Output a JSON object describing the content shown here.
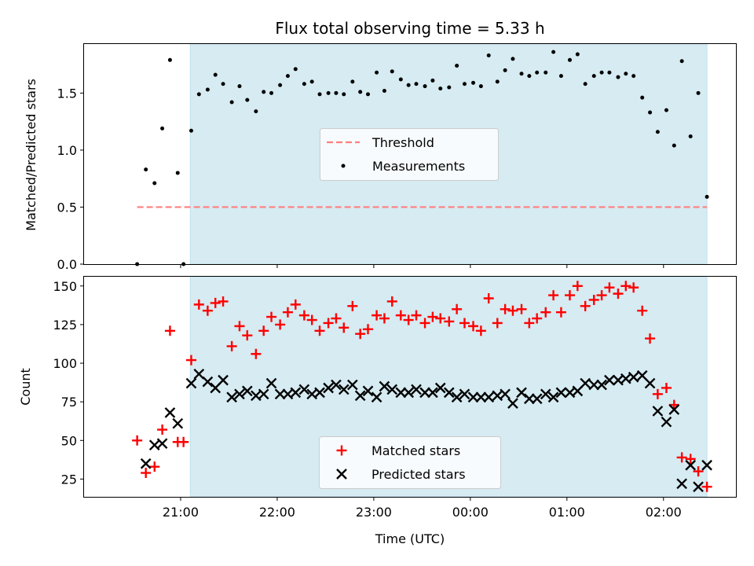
{
  "title": "Flux total observing time = 5.33 h",
  "colors": {
    "shade": "#add8e6",
    "threshold": "#ff7f7f",
    "measurement": "#000000",
    "matched": "#ff0000",
    "predicted": "#000000"
  },
  "chart_data": [
    {
      "type": "scatter",
      "ylabel": "Matched/Predicted stars",
      "xlabel": "",
      "xlim": [
        20.0,
        26.75
      ],
      "ylim": [
        0,
        1.93
      ],
      "yticks": [
        0.0,
        0.5,
        1.0,
        1.5
      ],
      "ytick_labels": [
        "0.0",
        "0.5",
        "1.0",
        "1.5"
      ],
      "shaded_span": [
        21.1,
        26.45
      ],
      "legend_position": "center",
      "threshold": {
        "name": "Threshold",
        "value": 0.5,
        "x_range": [
          20.55,
          26.45
        ]
      },
      "series": [
        {
          "name": "Measurements",
          "x": [
            20.55,
            20.64,
            20.73,
            20.81,
            20.89,
            20.97,
            21.03,
            21.11,
            21.19,
            21.28,
            21.36,
            21.44,
            21.53,
            21.61,
            21.69,
            21.78,
            21.86,
            21.94,
            22.03,
            22.11,
            22.19,
            22.28,
            22.36,
            22.44,
            22.53,
            22.61,
            22.69,
            22.78,
            22.86,
            22.94,
            23.03,
            23.11,
            23.19,
            23.28,
            23.36,
            23.44,
            23.53,
            23.61,
            23.69,
            23.78,
            23.86,
            23.94,
            24.03,
            24.11,
            24.19,
            24.28,
            24.36,
            24.44,
            24.53,
            24.61,
            24.69,
            24.78,
            24.86,
            24.94,
            25.03,
            25.11,
            25.19,
            25.28,
            25.36,
            25.44,
            25.53,
            25.61,
            25.69,
            25.78,
            25.86,
            25.94,
            26.03,
            26.11,
            26.19,
            26.28,
            26.36,
            26.45
          ],
          "y": [
            0.0,
            0.83,
            0.71,
            1.19,
            1.79,
            0.8,
            0.0,
            1.17,
            1.49,
            1.53,
            1.66,
            1.58,
            1.42,
            1.56,
            1.44,
            1.34,
            1.51,
            1.5,
            1.57,
            1.65,
            1.71,
            1.58,
            1.6,
            1.49,
            1.5,
            1.5,
            1.49,
            1.6,
            1.51,
            1.49,
            1.68,
            1.52,
            1.69,
            1.62,
            1.57,
            1.58,
            1.56,
            1.61,
            1.54,
            1.55,
            1.74,
            1.58,
            1.59,
            1.56,
            1.83,
            1.6,
            1.7,
            1.8,
            1.67,
            1.65,
            1.68,
            1.68,
            1.86,
            1.65,
            1.79,
            1.84,
            1.58,
            1.65,
            1.68,
            1.68,
            1.64,
            1.67,
            1.65,
            1.46,
            1.33,
            1.16,
            1.35,
            1.04,
            1.78,
            1.12,
            1.5,
            0.59
          ]
        }
      ]
    },
    {
      "type": "scatter",
      "ylabel": "Count",
      "xlabel": "Time (UTC)",
      "xlim": [
        20.0,
        26.75
      ],
      "ylim": [
        13.5,
        156
      ],
      "yticks": [
        25,
        50,
        75,
        100,
        125,
        150
      ],
      "ytick_labels": [
        "25",
        "50",
        "75",
        "100",
        "125",
        "150"
      ],
      "xticks": [
        21,
        22,
        23,
        24,
        25,
        26
      ],
      "xtick_labels": [
        "21:00",
        "22:00",
        "23:00",
        "00:00",
        "01:00",
        "02:00"
      ],
      "shaded_span": [
        21.1,
        26.45
      ],
      "legend_position": "lower center",
      "series": [
        {
          "name": "Matched stars",
          "marker": "plus",
          "x": [
            20.55,
            20.64,
            20.73,
            20.81,
            20.89,
            20.97,
            21.03,
            21.11,
            21.19,
            21.28,
            21.36,
            21.44,
            21.53,
            21.61,
            21.69,
            21.78,
            21.86,
            21.94,
            22.03,
            22.11,
            22.19,
            22.28,
            22.36,
            22.44,
            22.53,
            22.61,
            22.69,
            22.78,
            22.86,
            22.94,
            23.03,
            23.11,
            23.19,
            23.28,
            23.36,
            23.44,
            23.53,
            23.61,
            23.69,
            23.78,
            23.86,
            23.94,
            24.03,
            24.11,
            24.19,
            24.28,
            24.36,
            24.44,
            24.53,
            24.61,
            24.69,
            24.78,
            24.86,
            24.94,
            25.03,
            25.11,
            25.19,
            25.28,
            25.36,
            25.44,
            25.53,
            25.61,
            25.69,
            25.78,
            25.86,
            25.94,
            26.03,
            26.11,
            26.19,
            26.28,
            26.36,
            26.45
          ],
          "y": [
            50,
            29,
            33,
            57,
            121,
            49,
            49,
            102,
            138,
            134,
            139,
            140,
            111,
            124,
            118,
            106,
            121,
            130,
            125,
            133,
            138,
            131,
            128,
            121,
            126,
            129,
            123,
            137,
            119,
            122,
            131,
            129,
            140,
            131,
            128,
            131,
            126,
            130,
            129,
            127,
            135,
            126,
            124,
            121,
            142,
            126,
            135,
            134,
            135,
            126,
            129,
            133,
            144,
            133,
            144,
            150,
            137,
            141,
            144,
            149,
            145,
            150,
            149,
            134,
            116,
            80,
            84,
            73,
            39,
            38,
            30,
            20
          ]
        },
        {
          "name": "Predicted stars",
          "marker": "x",
          "x": [
            20.55,
            20.64,
            20.73,
            20.81,
            20.89,
            20.97,
            21.03,
            21.11,
            21.19,
            21.28,
            21.36,
            21.44,
            21.53,
            21.61,
            21.69,
            21.78,
            21.86,
            21.94,
            22.03,
            22.11,
            22.19,
            22.28,
            22.36,
            22.44,
            22.53,
            22.61,
            22.69,
            22.78,
            22.86,
            22.94,
            23.03,
            23.11,
            23.19,
            23.28,
            23.36,
            23.44,
            23.53,
            23.61,
            23.69,
            23.78,
            23.86,
            23.94,
            24.03,
            24.11,
            24.19,
            24.28,
            24.36,
            24.44,
            24.53,
            24.61,
            24.69,
            24.78,
            24.86,
            24.94,
            25.03,
            25.11,
            25.19,
            25.28,
            25.36,
            25.44,
            25.53,
            25.61,
            25.69,
            25.78,
            25.86,
            25.94,
            26.03,
            26.11,
            26.19,
            26.28,
            26.36,
            26.45
          ],
          "y": [
            null,
            35,
            47,
            48,
            68,
            61,
            null,
            87,
            93,
            88,
            84,
            89,
            78,
            80,
            82,
            79,
            80,
            87,
            80,
            80,
            81,
            83,
            80,
            81,
            84,
            86,
            83,
            86,
            79,
            82,
            78,
            85,
            83,
            81,
            81,
            83,
            81,
            81,
            84,
            81,
            78,
            80,
            78,
            78,
            78,
            79,
            80,
            74,
            81,
            77,
            77,
            80,
            78,
            81,
            81,
            82,
            87,
            86,
            86,
            89,
            89,
            90,
            91,
            92,
            87,
            69,
            62,
            70,
            22,
            34,
            20,
            34
          ]
        }
      ]
    }
  ]
}
